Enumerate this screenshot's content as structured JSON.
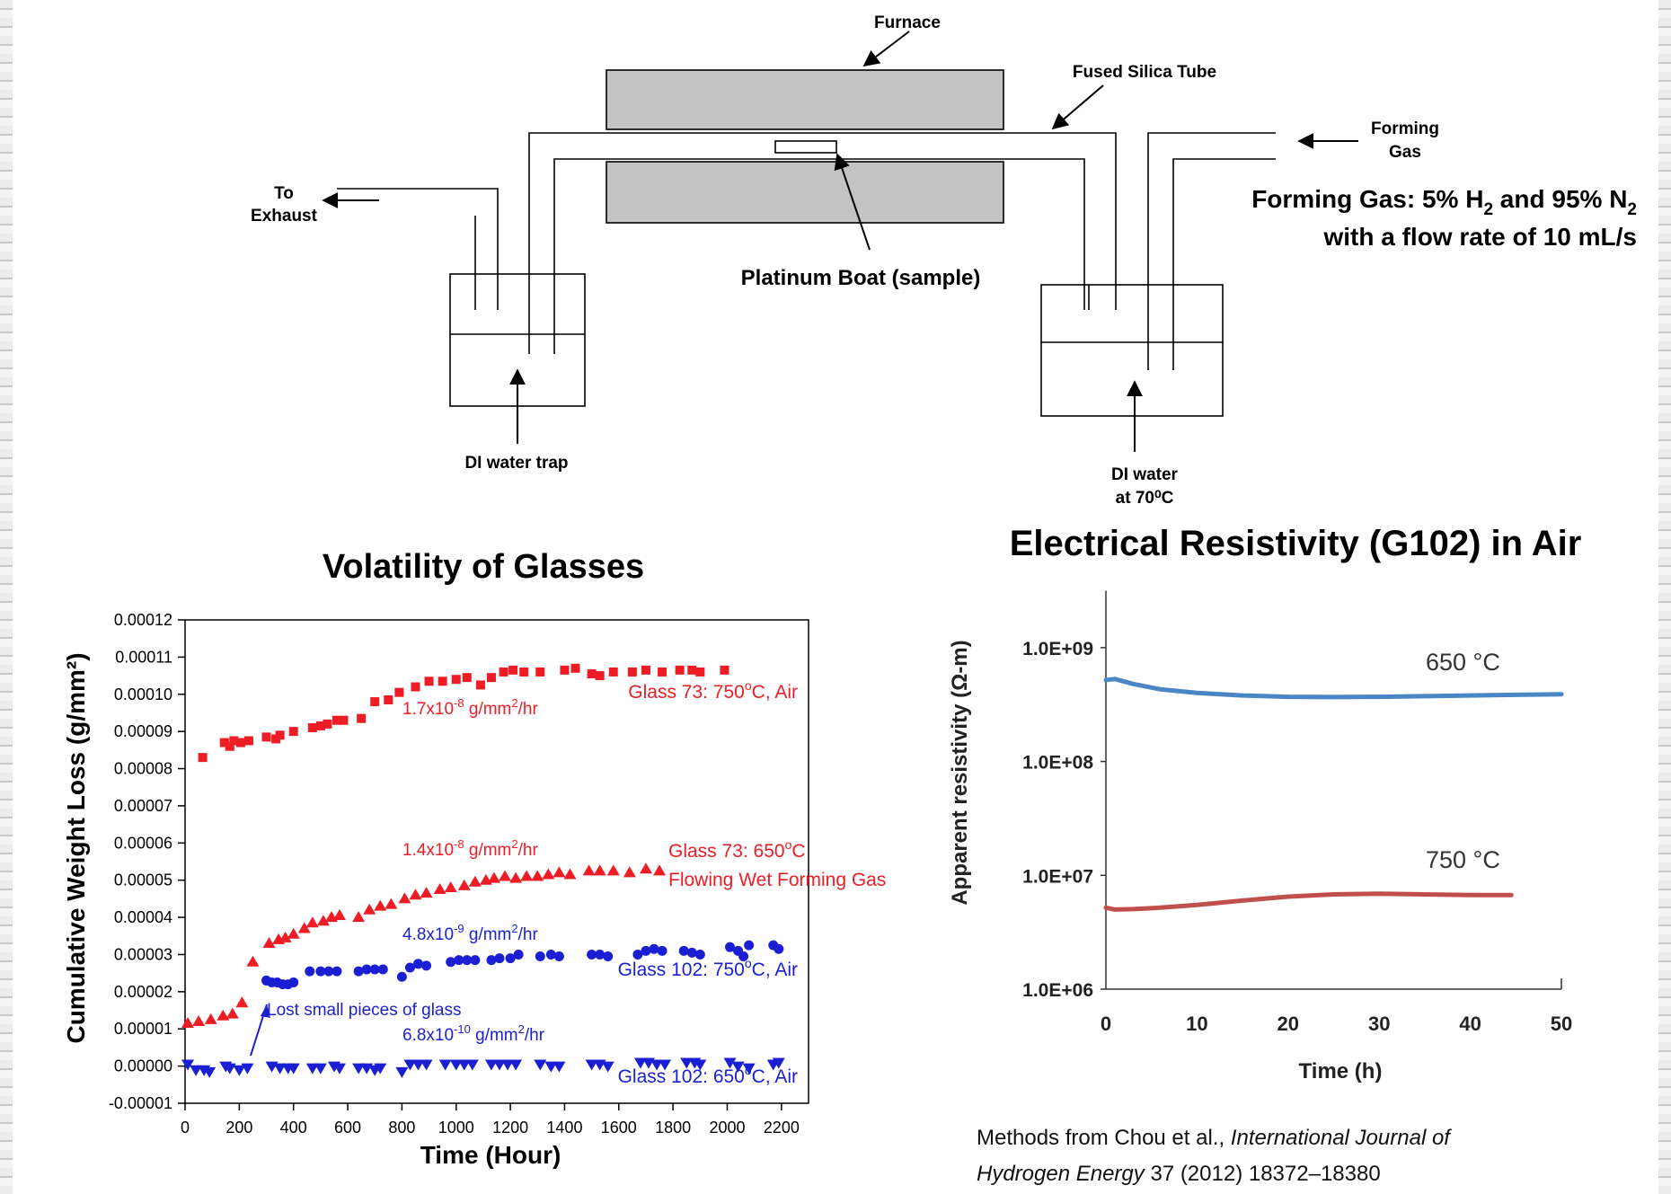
{
  "diagram": {
    "labels": {
      "furnace": "Furnace",
      "tube": "Fused Silica Tube",
      "forming_gas_1": "Forming",
      "forming_gas_2": "Gas",
      "exhaust_1": "To",
      "exhaust_2": "Exhaust",
      "boat": "Platinum Boat (sample)",
      "trap": "DI water trap",
      "water_1": "DI water",
      "water_2": "at 70⁰C"
    },
    "gas_note": {
      "line1_a": "Forming Gas: 5% H",
      "line1_sub1": "2",
      "line1_b": " and 95% N",
      "line1_sub2": "2",
      "line2": "with a flow rate of 10 mL/s"
    }
  },
  "chart_data": [
    {
      "type": "scatter",
      "title": "Volatility of Glasses",
      "xlabel": "Time (Hour)",
      "ylabel": "Cumulative Weight Loss (g/mm²)",
      "xlim": [
        0,
        2300
      ],
      "ylim": [
        -1e-05,
        0.00012
      ],
      "xticks": [
        "0",
        "200",
        "400",
        "600",
        "800",
        "1000",
        "1200",
        "1400",
        "1600",
        "1800",
        "2000",
        "2200"
      ],
      "yticks": [
        "-0.00001",
        "0.00000",
        "0.00001",
        "0.00002",
        "0.00003",
        "0.00004",
        "0.00005",
        "0.00006",
        "0.00007",
        "0.00008",
        "0.00009",
        "0.00010",
        "0.00011",
        "0.00012"
      ],
      "series": [
        {
          "name": "Glass 73: 750°C, Air",
          "marker": "square",
          "color": "#ee1c25",
          "points": [
            [
              65,
              8.3e-05
            ],
            [
              145,
              8.7e-05
            ],
            [
              165,
              8.6e-05
            ],
            [
              180,
              8.75e-05
            ],
            [
              205,
              8.7e-05
            ],
            [
              235,
              8.75e-05
            ],
            [
              300,
              8.85e-05
            ],
            [
              335,
              8.8e-05
            ],
            [
              350,
              8.9e-05
            ],
            [
              400,
              9e-05
            ],
            [
              470,
              9.1e-05
            ],
            [
              500,
              9.15e-05
            ],
            [
              525,
              9.2e-05
            ],
            [
              560,
              9.3e-05
            ],
            [
              585,
              9.3e-05
            ],
            [
              650,
              9.35e-05
            ],
            [
              700,
              9.8e-05
            ],
            [
              750,
              9.85e-05
            ],
            [
              790,
              0.0001005
            ],
            [
              850,
              0.000102
            ],
            [
              900,
              0.0001035
            ],
            [
              950,
              0.0001035
            ],
            [
              1000,
              0.000104
            ],
            [
              1040,
              0.0001045
            ],
            [
              1090,
              0.0001025
            ],
            [
              1130,
              0.0001045
            ],
            [
              1175,
              0.000106
            ],
            [
              1210,
              0.0001065
            ],
            [
              1250,
              0.000106
            ],
            [
              1310,
              0.000106
            ],
            [
              1400,
              0.0001065
            ],
            [
              1440,
              0.000107
            ],
            [
              1500,
              0.0001055
            ],
            [
              1530,
              0.000105
            ],
            [
              1580,
              0.000106
            ],
            [
              1650,
              0.000106
            ],
            [
              1700,
              0.0001065
            ],
            [
              1760,
              0.000106
            ],
            [
              1825,
              0.0001065
            ],
            [
              1870,
              0.0001065
            ],
            [
              1900,
              0.000106
            ],
            [
              1990,
              0.0001065
            ]
          ]
        },
        {
          "name": "Glass 73: 650°C Flowing Wet Forming Gas",
          "marker": "triangle-up",
          "color": "#ee1c25",
          "points": [
            [
              10,
              1.15e-05
            ],
            [
              50,
              1.2e-05
            ],
            [
              95,
              1.25e-05
            ],
            [
              140,
              1.35e-05
            ],
            [
              175,
              1.4e-05
            ],
            [
              210,
              1.7e-05
            ],
            [
              250,
              2.8e-05
            ],
            [
              310,
              3.3e-05
            ],
            [
              345,
              3.4e-05
            ],
            [
              370,
              3.45e-05
            ],
            [
              400,
              3.55e-05
            ],
            [
              440,
              3.7e-05
            ],
            [
              470,
              3.85e-05
            ],
            [
              510,
              3.9e-05
            ],
            [
              540,
              4e-05
            ],
            [
              570,
              4.05e-05
            ],
            [
              640,
              4e-05
            ],
            [
              680,
              4.2e-05
            ],
            [
              720,
              4.3e-05
            ],
            [
              760,
              4.35e-05
            ],
            [
              810,
              4.5e-05
            ],
            [
              850,
              4.6e-05
            ],
            [
              890,
              4.65e-05
            ],
            [
              940,
              4.75e-05
            ],
            [
              980,
              4.8e-05
            ],
            [
              1030,
              4.85e-05
            ],
            [
              1070,
              4.95e-05
            ],
            [
              1110,
              5e-05
            ],
            [
              1140,
              5.05e-05
            ],
            [
              1180,
              5.1e-05
            ],
            [
              1220,
              5.05e-05
            ],
            [
              1260,
              5.1e-05
            ],
            [
              1300,
              5.1e-05
            ],
            [
              1340,
              5.15e-05
            ],
            [
              1380,
              5.2e-05
            ],
            [
              1420,
              5.15e-05
            ],
            [
              1490,
              5.25e-05
            ],
            [
              1530,
              5.25e-05
            ],
            [
              1580,
              5.25e-05
            ],
            [
              1640,
              5.2e-05
            ],
            [
              1700,
              5.3e-05
            ],
            [
              1750,
              5.25e-05
            ]
          ]
        },
        {
          "name": "Glass 102: 750°C, Air",
          "marker": "circle",
          "color": "#1b1fd3",
          "points": [
            [
              300,
              2.3e-05
            ],
            [
              320,
              2.25e-05
            ],
            [
              340,
              2.25e-05
            ],
            [
              360,
              2.2e-05
            ],
            [
              380,
              2.2e-05
            ],
            [
              400,
              2.25e-05
            ],
            [
              460,
              2.55e-05
            ],
            [
              500,
              2.55e-05
            ],
            [
              530,
              2.55e-05
            ],
            [
              560,
              2.55e-05
            ],
            [
              640,
              2.55e-05
            ],
            [
              670,
              2.6e-05
            ],
            [
              700,
              2.6e-05
            ],
            [
              730,
              2.6e-05
            ],
            [
              800,
              2.4e-05
            ],
            [
              830,
              2.65e-05
            ],
            [
              860,
              2.75e-05
            ],
            [
              890,
              2.7e-05
            ],
            [
              980,
              2.8e-05
            ],
            [
              1010,
              2.85e-05
            ],
            [
              1040,
              2.85e-05
            ],
            [
              1070,
              2.85e-05
            ],
            [
              1130,
              2.85e-05
            ],
            [
              1160,
              2.9e-05
            ],
            [
              1200,
              2.9e-05
            ],
            [
              1230,
              3e-05
            ],
            [
              1310,
              2.95e-05
            ],
            [
              1350,
              3e-05
            ],
            [
              1380,
              2.95e-05
            ],
            [
              1500,
              3e-05
            ],
            [
              1530,
              3e-05
            ],
            [
              1560,
              2.95e-05
            ],
            [
              1670,
              3e-05
            ],
            [
              1700,
              3.1e-05
            ],
            [
              1730,
              3.15e-05
            ],
            [
              1760,
              3.1e-05
            ],
            [
              1840,
              3.1e-05
            ],
            [
              1870,
              3.05e-05
            ],
            [
              1900,
              3e-05
            ],
            [
              2010,
              3.2e-05
            ],
            [
              2040,
              3.1e-05
            ],
            [
              2060,
              2.95e-05
            ],
            [
              2080,
              3.25e-05
            ],
            [
              2170,
              3.25e-05
            ],
            [
              2190,
              3.15e-05
            ]
          ]
        },
        {
          "name": "Glass 102: 650°C, Air",
          "marker": "triangle-down",
          "color": "#1b1fd3",
          "points": [
            [
              10,
              5e-07
            ],
            [
              40,
              -1e-06
            ],
            [
              70,
              -1e-06
            ],
            [
              90,
              -1.5e-06
            ],
            [
              150,
              0
            ],
            [
              165,
              -5e-07
            ],
            [
              200,
              -1e-06
            ],
            [
              230,
              -5e-07
            ],
            [
              320,
              0
            ],
            [
              350,
              -5e-07
            ],
            [
              380,
              -5e-07
            ],
            [
              400,
              -5e-07
            ],
            [
              470,
              -5e-07
            ],
            [
              500,
              -5e-07
            ],
            [
              550,
              0
            ],
            [
              570,
              -5e-07
            ],
            [
              640,
              -5e-07
            ],
            [
              670,
              -5e-07
            ],
            [
              700,
              -1e-06
            ],
            [
              720,
              -5e-07
            ],
            [
              800,
              -1.5e-06
            ],
            [
              830,
              5e-07
            ],
            [
              860,
              5e-07
            ],
            [
              890,
              5e-07
            ],
            [
              960,
              5e-07
            ],
            [
              1000,
              5e-07
            ],
            [
              1030,
              5e-07
            ],
            [
              1060,
              5e-07
            ],
            [
              1130,
              5e-07
            ],
            [
              1160,
              5e-07
            ],
            [
              1190,
              5e-07
            ],
            [
              1220,
              5e-07
            ],
            [
              1310,
              5e-07
            ],
            [
              1350,
              0
            ],
            [
              1380,
              0
            ],
            [
              1500,
              5e-07
            ],
            [
              1530,
              5e-07
            ],
            [
              1560,
              0
            ],
            [
              1680,
              1e-06
            ],
            [
              1710,
              1e-06
            ],
            [
              1740,
              5e-07
            ],
            [
              1770,
              5e-07
            ],
            [
              1850,
              1e-06
            ],
            [
              1880,
              1e-06
            ],
            [
              1900,
              5e-07
            ],
            [
              2010,
              1e-06
            ],
            [
              2040,
              0
            ],
            [
              2080,
              -5e-07
            ],
            [
              2170,
              5e-07
            ],
            [
              2190,
              1e-06
            ]
          ]
        }
      ],
      "annotations": {
        "rate_73_750_pre": "1.7x10",
        "rate_73_750_exp": "-8",
        "rate_73_750_mid": " g/mm",
        "rate_73_750_sq": "2",
        "rate_73_750_post": "/hr",
        "rate_73_650_pre": "1.4x10",
        "rate_73_650_exp": "-8",
        "rate_73_650_mid": " g/mm",
        "rate_73_650_sq": "2",
        "rate_73_650_post": "/hr",
        "rate_102_750_pre": "4.8x10",
        "rate_102_750_exp": "-9",
        "rate_102_750_mid": " g/mm",
        "rate_102_750_sq": "2",
        "rate_102_750_post": "/hr",
        "rate_102_650_pre": "6.8x10",
        "rate_102_650_exp": "-10",
        "rate_102_650_mid": " g/mm",
        "rate_102_650_sq": "2",
        "rate_102_650_post": "/hr",
        "label_73_750_pre": "Glass 73: 750",
        "label_73_750_deg": "o",
        "label_73_750_post": "C, Air",
        "label_73_650_pre": "Glass 73: 650",
        "label_73_650_deg": "o",
        "label_73_650_post": "C",
        "label_73_650_line2": "Flowing Wet Forming Gas",
        "label_102_750_pre": "Glass 102: 750",
        "label_102_750_deg": "o",
        "label_102_750_post": "C, Air",
        "label_102_650_pre": "Glass 102: 650",
        "label_102_650_deg": "o",
        "label_102_650_post": "C, Air",
        "lost": "Lost small pieces of glass"
      }
    },
    {
      "type": "line",
      "title": "Electrical Resistivity (G102) in Air",
      "xlabel": "Time (h)",
      "ylabel": "Apparent resistivity (Ω-m)",
      "xlim": [
        0,
        50
      ],
      "ylim_log10": [
        6,
        9.5
      ],
      "log_y": true,
      "xticks": [
        "0",
        "10",
        "20",
        "30",
        "40",
        "50"
      ],
      "yticks": [
        "1.0E+06",
        "1.0E+07",
        "1.0E+08",
        "1.0E+09"
      ],
      "series": [
        {
          "name": "650 °C",
          "color": "#4a86c6",
          "points": [
            [
              0,
              520000000
            ],
            [
              1,
              530000000
            ],
            [
              3,
              480000000
            ],
            [
              6,
              430000000
            ],
            [
              10,
              400000000
            ],
            [
              15,
              380000000
            ],
            [
              20,
              370000000
            ],
            [
              25,
              368000000
            ],
            [
              30,
              370000000
            ],
            [
              35,
              375000000
            ],
            [
              40,
              380000000
            ],
            [
              45,
              385000000
            ],
            [
              50,
              390000000
            ]
          ]
        },
        {
          "name": "750 °C",
          "color": "#c0504d",
          "points": [
            [
              0,
              5200000
            ],
            [
              1,
              5000000
            ],
            [
              3,
              5050000
            ],
            [
              6,
              5200000
            ],
            [
              10,
              5500000
            ],
            [
              15,
              6000000
            ],
            [
              20,
              6500000
            ],
            [
              25,
              6800000
            ],
            [
              30,
              6900000
            ],
            [
              35,
              6800000
            ],
            [
              40,
              6700000
            ],
            [
              44.5,
              6700000
            ]
          ]
        }
      ]
    }
  ],
  "citation": {
    "pre": "Methods from Chou et al., ",
    "journal1": "International Journal of",
    "journal2": "Hydrogen Energy",
    "post": " 37 (2012) 18372–18380"
  }
}
